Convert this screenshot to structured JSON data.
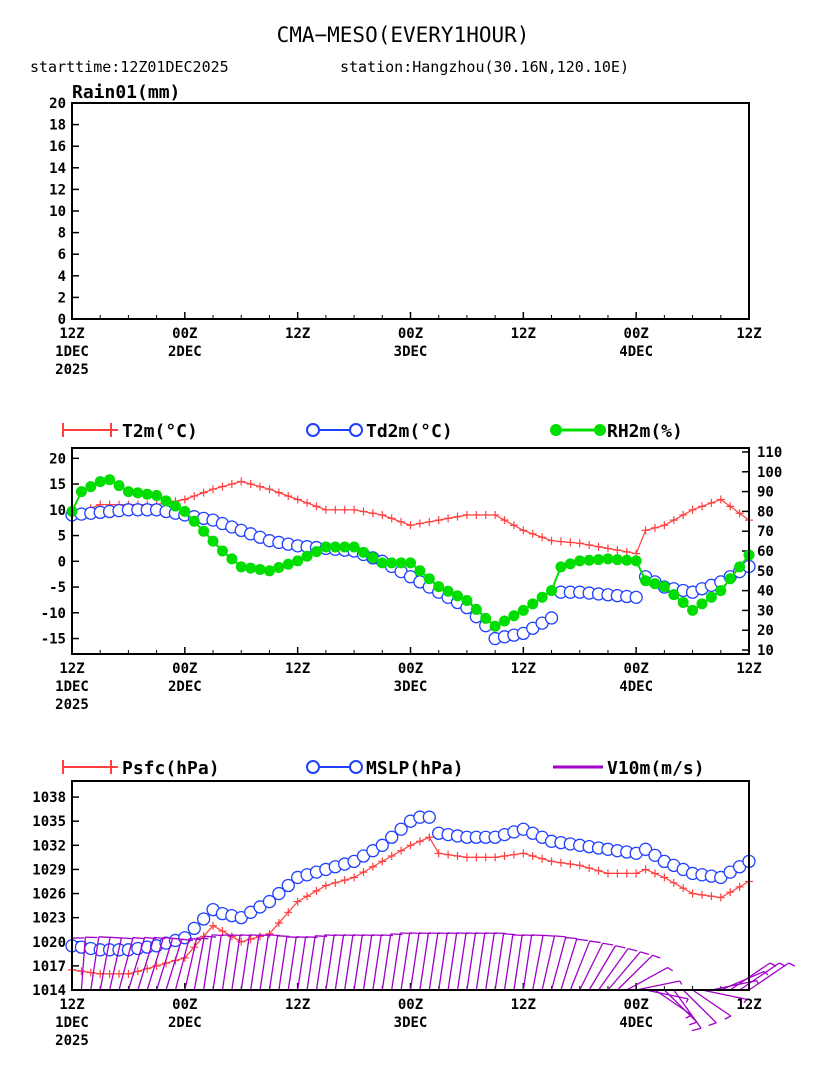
{
  "header": {
    "title": "CMA−MESO(EVERY1HOUR)",
    "subtitle_left": "starttime:12Z01DEC2025",
    "subtitle_right": "station:Hangzhou(30.16N,120.10E)"
  },
  "x_ticks": [
    {
      "h": 0,
      "l1": "12Z",
      "l2": "1DEC",
      "l3": "2025"
    },
    {
      "h": 12,
      "l1": "00Z",
      "l2": "2DEC",
      "l3": ""
    },
    {
      "h": 24,
      "l1": "12Z",
      "l2": "",
      "l3": ""
    },
    {
      "h": 36,
      "l1": "00Z",
      "l2": "3DEC",
      "l3": ""
    },
    {
      "h": 48,
      "l1": "12Z",
      "l2": "",
      "l3": ""
    },
    {
      "h": 60,
      "l1": "00Z",
      "l2": "4DEC",
      "l3": ""
    },
    {
      "h": 72,
      "l1": "12Z",
      "l2": "",
      "l3": ""
    }
  ],
  "colors": {
    "t2m": "#ff4040",
    "td2m": "#2040ff",
    "rh2m": "#00dd00",
    "psfc": "#ff4040",
    "mslp": "#2040ff",
    "wind": "#a000c8"
  },
  "chart_data": [
    {
      "type": "line",
      "panel": "rain",
      "ylabel": "Rain01(mm)",
      "x_range_hours": [
        0,
        72
      ],
      "ylim": [
        0,
        20
      ],
      "yticks": [
        0,
        2,
        4,
        6,
        8,
        10,
        12,
        14,
        16,
        18,
        20
      ],
      "series": []
    },
    {
      "type": "line",
      "panel": "temperature_humidity",
      "x_range_hours": [
        0,
        72
      ],
      "ylim_left": [
        -18,
        22
      ],
      "yticks_left": [
        -15,
        -10,
        -5,
        0,
        5,
        10,
        15,
        20
      ],
      "ylim_right": [
        8,
        112
      ],
      "yticks_right": [
        10,
        20,
        30,
        40,
        50,
        60,
        70,
        80,
        90,
        100,
        110
      ],
      "legend": [
        "T2m(°C)",
        "Td2m(°C)",
        "RH2m(%)"
      ],
      "series": [
        {
          "name": "T2m(°C)",
          "axis": "left",
          "marker": "plus",
          "x": [
            0,
            3,
            6,
            9,
            12,
            15,
            18,
            21,
            24,
            27,
            30,
            33,
            36,
            39,
            42,
            45,
            48,
            51,
            54,
            57,
            60,
            61,
            63,
            66,
            69,
            72
          ],
          "y": [
            9,
            11,
            11,
            11,
            12,
            14,
            15.5,
            14,
            12,
            10,
            10,
            9,
            7,
            8,
            9,
            9,
            6,
            4,
            3.5,
            2.5,
            1.5,
            6,
            7,
            10,
            12,
            8
          ]
        },
        {
          "name": "Td2m(°C)",
          "axis": "left",
          "marker": "circle",
          "x": [
            0,
            3,
            6,
            9,
            12,
            15,
            18,
            21,
            24,
            27,
            30,
            33,
            36,
            39,
            42,
            44,
            45,
            48,
            51,
            52,
            54,
            57,
            60,
            61,
            63,
            66,
            69,
            72
          ],
          "y": [
            9,
            9.5,
            10,
            10,
            9,
            8,
            6,
            4,
            3,
            2.5,
            2,
            0,
            -3,
            -6,
            -9,
            -12.5,
            -15,
            -14,
            -11,
            -6,
            -6,
            -6.5,
            -7,
            -3,
            -5,
            -6,
            -4,
            -1
          ]
        },
        {
          "name": "RH2m(%)",
          "axis": "right",
          "marker": "dot",
          "x": [
            0,
            1,
            3,
            4,
            6,
            9,
            12,
            14,
            16,
            18,
            21,
            24,
            27,
            30,
            33,
            36,
            39,
            42,
            44,
            45,
            48,
            51,
            52,
            54,
            57,
            60,
            61,
            63,
            66,
            69,
            72
          ],
          "y": [
            80,
            90,
            95,
            96,
            90,
            88,
            80,
            70,
            60,
            52,
            50,
            55,
            62,
            62,
            54,
            54,
            42,
            35,
            26,
            22,
            30,
            40,
            52,
            55,
            56,
            55,
            45,
            42,
            30,
            40,
            58
          ]
        }
      ]
    },
    {
      "type": "line",
      "panel": "pressure_wind",
      "x_range_hours": [
        0,
        72
      ],
      "ylim": [
        1014,
        1040
      ],
      "yticks": [
        1014,
        1017,
        1020,
        1023,
        1026,
        1029,
        1032,
        1035,
        1038
      ],
      "legend": [
        "Psfc(hPa)",
        "MSLP(hPa)",
        "V10m(m/s)"
      ],
      "series": [
        {
          "name": "Psfc(hPa)",
          "marker": "plus",
          "x": [
            0,
            3,
            6,
            9,
            12,
            15,
            18,
            21,
            24,
            27,
            30,
            33,
            36,
            38,
            39,
            42,
            45,
            48,
            51,
            54,
            57,
            60,
            61,
            63,
            66,
            69,
            72
          ],
          "y": [
            1016.5,
            1016,
            1016,
            1017,
            1018,
            1022,
            1020,
            1021,
            1025,
            1027,
            1028,
            1030,
            1032,
            1033,
            1031,
            1030.5,
            1030.5,
            1031,
            1030,
            1029.5,
            1028.5,
            1028.5,
            1029,
            1028,
            1026,
            1025.5,
            1027.5
          ]
        },
        {
          "name": "MSLP(hPa)",
          "marker": "circle",
          "x": [
            0,
            3,
            6,
            9,
            12,
            15,
            16,
            18,
            21,
            24,
            27,
            30,
            33,
            36,
            37,
            38,
            39,
            42,
            45,
            48,
            51,
            54,
            57,
            60,
            61,
            63,
            66,
            69,
            72
          ],
          "y": [
            1019.5,
            1019,
            1019,
            1019.5,
            1020.5,
            1024,
            1023.5,
            1023,
            1025,
            1028,
            1029,
            1030,
            1032,
            1035,
            1035.5,
            1035.5,
            1033.5,
            1033,
            1033,
            1034,
            1032.5,
            1032,
            1031.5,
            1031,
            1031.5,
            1030,
            1028.5,
            1028,
            1030
          ]
        },
        {
          "name": "V10m(m/s)",
          "marker": "barb",
          "x": [
            0,
            2,
            4,
            6,
            8,
            10,
            12,
            14,
            16,
            18,
            20,
            22,
            24,
            26,
            28,
            30,
            32,
            34,
            36,
            38,
            40,
            42,
            44,
            46,
            48,
            50,
            52,
            54,
            56,
            58,
            60,
            62,
            64,
            66,
            68,
            70,
            72
          ],
          "y": [
            4,
            5,
            5,
            6,
            6,
            5,
            5,
            6,
            6,
            6,
            6,
            5,
            5,
            6,
            6,
            6,
            6,
            7,
            7,
            7,
            7,
            7,
            7,
            6,
            6,
            6,
            5,
            5,
            5,
            5,
            4,
            3,
            3,
            4,
            5,
            5,
            5
          ],
          "dir_deg": [
            0,
            10,
            15,
            20,
            20,
            20,
            15,
            10,
            10,
            10,
            10,
            10,
            10,
            10,
            10,
            10,
            10,
            10,
            10,
            10,
            10,
            10,
            10,
            10,
            10,
            15,
            20,
            30,
            40,
            50,
            80,
            120,
            140,
            120,
            80,
            60,
            60
          ]
        }
      ]
    }
  ]
}
